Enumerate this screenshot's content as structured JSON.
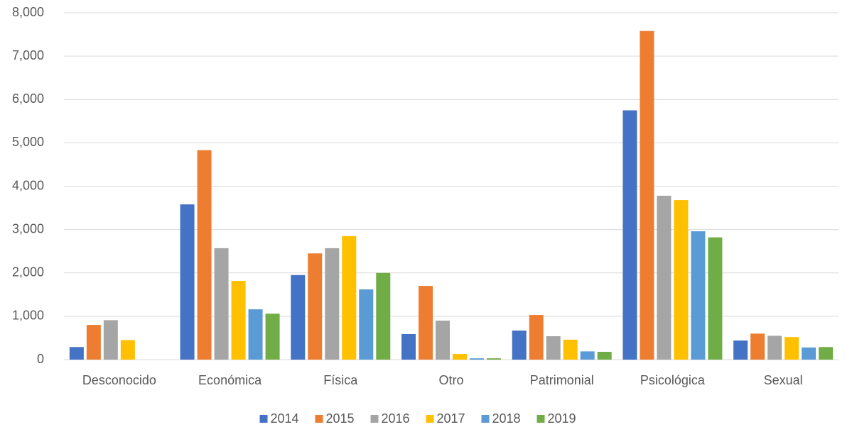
{
  "chart_data": {
    "type": "bar",
    "categories": [
      "Desconocido",
      "Económica",
      "Física",
      "Otro",
      "Patrimonial",
      "Psicológica",
      "Sexual"
    ],
    "series": [
      {
        "name": "2014",
        "color": "#4472c4",
        "values": [
          290,
          3580,
          1950,
          590,
          670,
          5750,
          440
        ]
      },
      {
        "name": "2015",
        "color": "#ed7d31",
        "values": [
          800,
          4830,
          2450,
          1700,
          1030,
          7580,
          600
        ]
      },
      {
        "name": "2016",
        "color": "#a5a5a5",
        "values": [
          910,
          2570,
          2570,
          900,
          540,
          3780,
          550
        ]
      },
      {
        "name": "2017",
        "color": "#ffc000",
        "values": [
          450,
          1815,
          2850,
          130,
          460,
          3680,
          520
        ]
      },
      {
        "name": "2018",
        "color": "#5b9bd5",
        "values": [
          0,
          1160,
          1620,
          30,
          190,
          2960,
          280
        ]
      },
      {
        "name": "2019",
        "color": "#70ad47",
        "values": [
          0,
          1060,
          2000,
          30,
          180,
          2820,
          290
        ]
      }
    ],
    "ylim": [
      0,
      8000
    ],
    "yticks": [
      0,
      {
        "value": 1000,
        "label": "1,000"
      },
      {
        "value": 2000,
        "label": "2,000"
      },
      {
        "value": 3000,
        "label": "3,000"
      },
      {
        "value": 4000,
        "label": "4,000"
      },
      {
        "value": 5000,
        "label": "5,000"
      },
      {
        "value": 6000,
        "label": "6,000"
      },
      {
        "value": 7000,
        "label": "7,000"
      },
      {
        "value": 8000,
        "label": "8,000"
      }
    ],
    "grid": true,
    "legend": "bottom"
  }
}
